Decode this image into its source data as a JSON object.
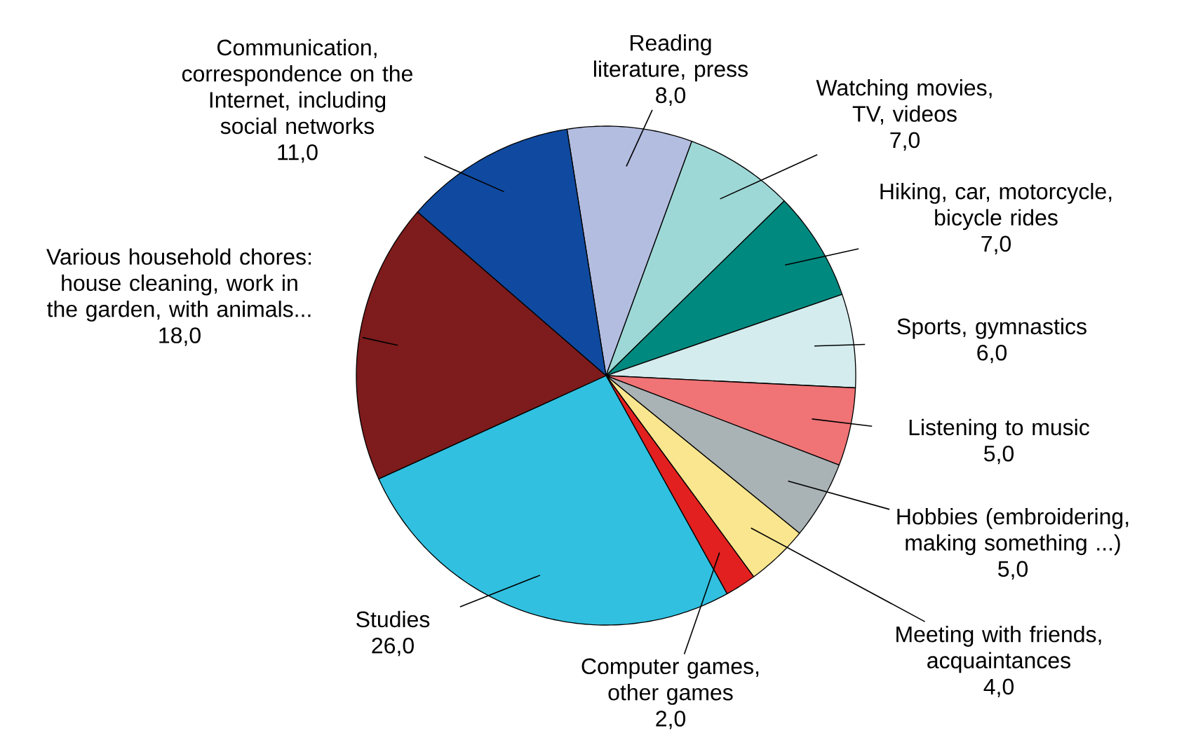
{
  "chart_data": {
    "type": "pie",
    "categories": [
      "Reading literature, press",
      "Watching movies, TV, videos",
      "Hiking, car, motorcycle, bicycle rides",
      "Sports, gymnastics",
      "Listening to music",
      "Hobbies (embroidering, making something ...)",
      "Meeting with friends, acquaintances",
      "Computer games, other games",
      "Studies",
      "Various household chores: house cleaning, work in the garden, with animals...",
      "Communication, correspondence on the Internet, including social networks"
    ],
    "values": [
      8,
      7,
      7,
      6,
      5,
      5,
      4,
      2,
      26,
      18,
      11
    ],
    "value_labels": [
      "8,0",
      "7,0",
      "7,0",
      "6,0",
      "5,0",
      "5,0",
      "4,0",
      "2,0",
      "26,0",
      "18,0",
      "11,0"
    ],
    "colors": [
      "#b3bde0",
      "#9dd8d6",
      "#00897f",
      "#d4ecee",
      "#f07375",
      "#a9b2b5",
      "#f9e68e",
      "#e2201f",
      "#31c0e0",
      "#7e1b1c",
      "#0f4aa0"
    ]
  }
}
